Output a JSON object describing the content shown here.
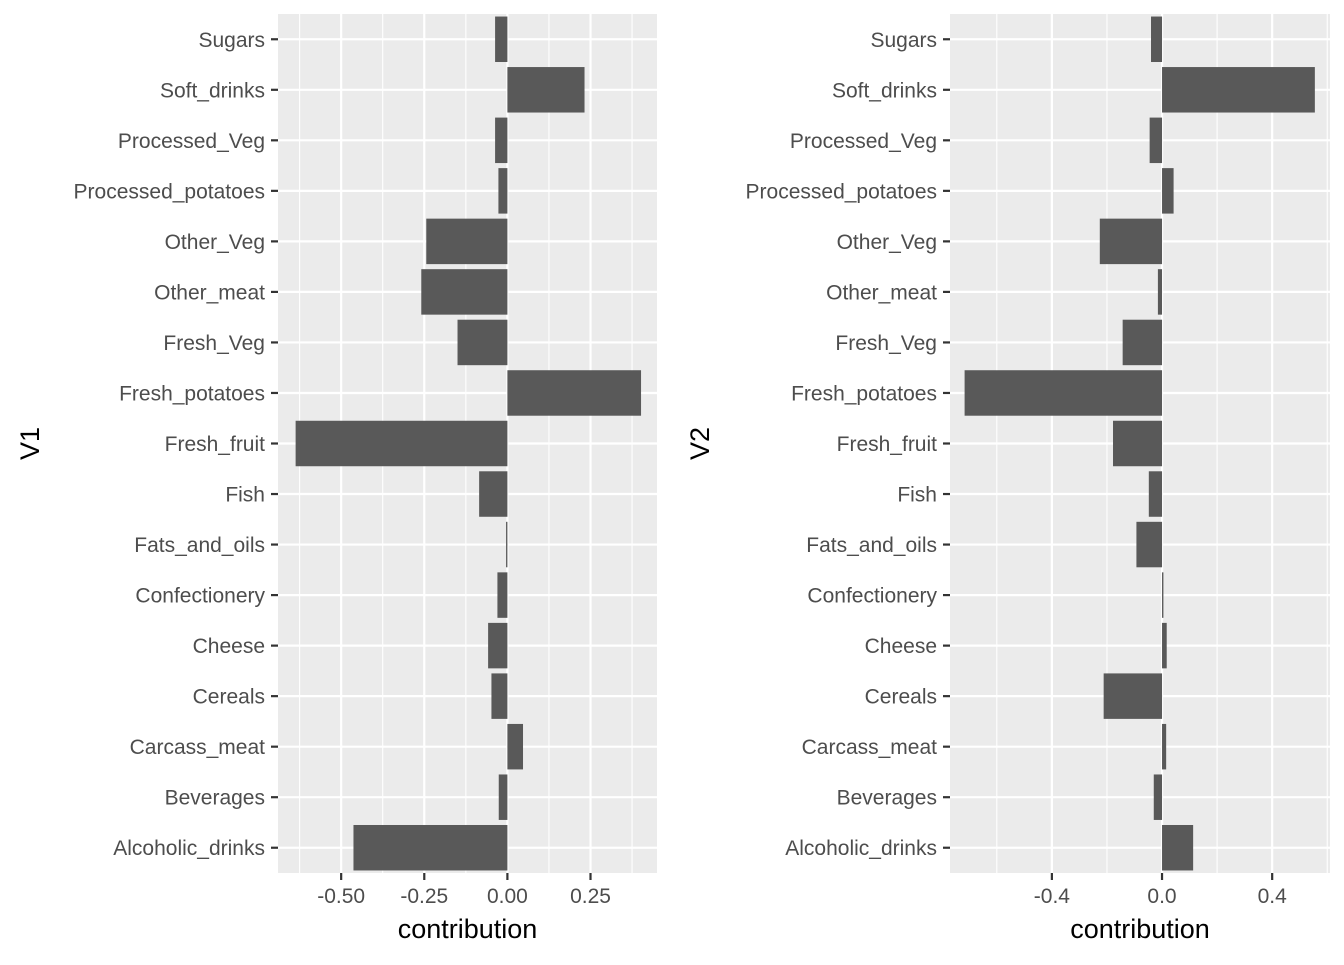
{
  "chart_data": [
    {
      "type": "bar",
      "orientation": "horizontal",
      "ylabel": "V1",
      "xlabel": "contribution",
      "categories": [
        "Alcoholic_drinks",
        "Beverages",
        "Carcass_meat",
        "Cereals",
        "Cheese",
        "Confectionery",
        "Fats_and_oils",
        "Fish",
        "Fresh_fruit",
        "Fresh_potatoes",
        "Fresh_Veg",
        "Other_meat",
        "Other_Veg",
        "Processed_potatoes",
        "Processed_Veg",
        "Soft_drinks",
        "Sugars"
      ],
      "values": [
        -0.463,
        -0.026,
        0.047,
        -0.048,
        -0.058,
        -0.03,
        -0.004,
        -0.085,
        -0.637,
        0.402,
        -0.15,
        -0.259,
        -0.244,
        -0.027,
        -0.037,
        0.232,
        -0.037
      ],
      "xlim": [
        -0.69,
        0.45
      ],
      "x_ticks": [
        -0.5,
        -0.25,
        0.0,
        0.25
      ],
      "x_tick_labels": [
        "-0.50",
        "-0.25",
        "0.00",
        "0.25"
      ],
      "grid": true,
      "bar_color": "#595959",
      "panel_color": "#ebebeb"
    },
    {
      "type": "bar",
      "orientation": "horizontal",
      "ylabel": "V2",
      "xlabel": "contribution",
      "categories": [
        "Alcoholic_drinks",
        "Beverages",
        "Carcass_meat",
        "Cereals",
        "Cheese",
        "Confectionery",
        "Fats_and_oils",
        "Fish",
        "Fresh_fruit",
        "Fresh_potatoes",
        "Fresh_Veg",
        "Other_meat",
        "Other_Veg",
        "Processed_potatoes",
        "Processed_Veg",
        "Soft_drinks",
        "Sugars"
      ],
      "values": [
        0.113,
        -0.03,
        0.015,
        -0.212,
        0.017,
        0.005,
        -0.093,
        -0.048,
        -0.178,
        -0.717,
        -0.143,
        -0.015,
        -0.226,
        0.042,
        -0.045,
        0.555,
        -0.04
      ],
      "xlim": [
        -0.77,
        0.61
      ],
      "x_ticks": [
        -0.4,
        0.0,
        0.4
      ],
      "x_tick_labels": [
        "-0.4",
        "0.0",
        "0.4"
      ],
      "grid": true,
      "bar_color": "#595959",
      "panel_color": "#ebebeb"
    }
  ]
}
